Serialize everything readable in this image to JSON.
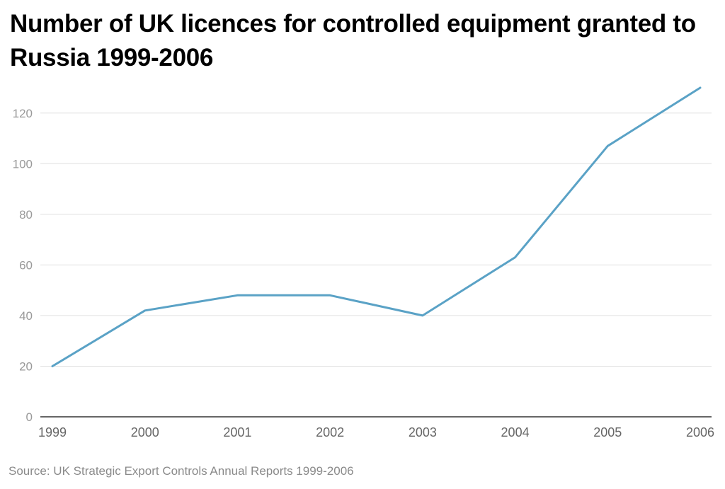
{
  "title": "Number of UK licences for controlled equipment granted to Russia 1999-2006",
  "source": "Source: UK Strategic Export Controls Annual Reports 1999-2006",
  "colors": {
    "line": "#5aa2c6",
    "grid": "#e0e0e0",
    "axis": "#333333"
  },
  "chart_data": {
    "type": "line",
    "title": "Number of UK licences for controlled equipment granted to Russia 1999-2006",
    "xlabel": "",
    "ylabel": "",
    "categories": [
      "1999",
      "2000",
      "2001",
      "2002",
      "2003",
      "2004",
      "2005",
      "2006"
    ],
    "series": [
      {
        "values": [
          20,
          42,
          48,
          48,
          40,
          63,
          107,
          130
        ]
      }
    ],
    "y_ticks": [
      0,
      20,
      40,
      60,
      80,
      100,
      120
    ],
    "ylim": [
      0,
      130
    ],
    "grid": true,
    "legend": "none"
  }
}
